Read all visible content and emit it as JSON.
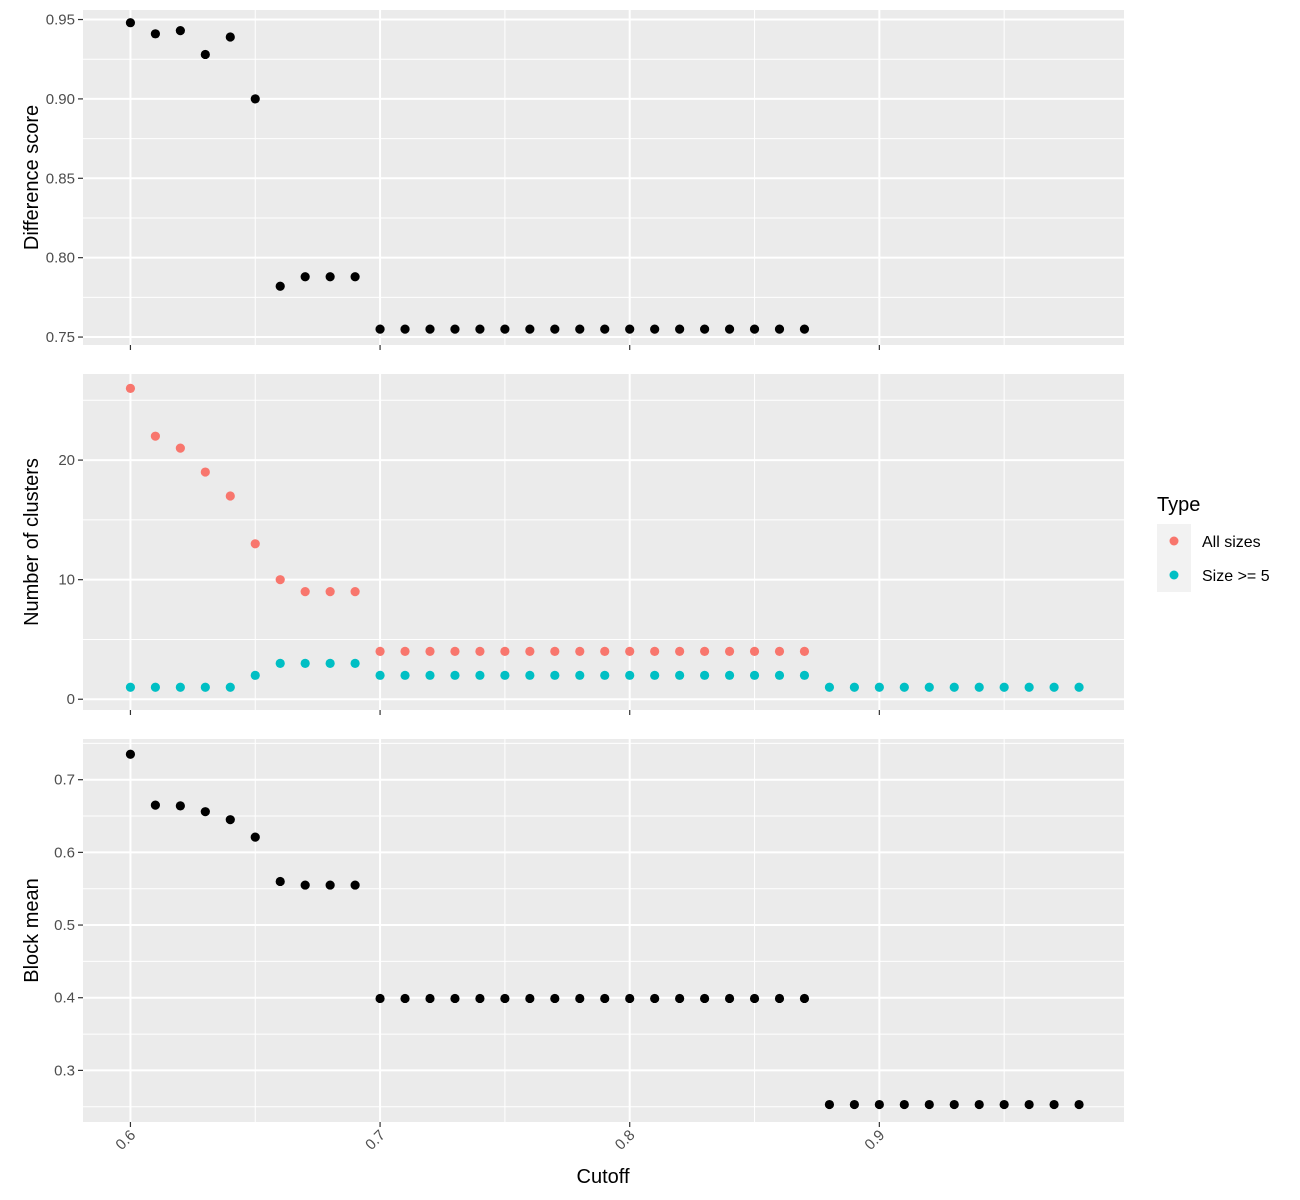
{
  "chart_data": {
    "type": "scatter",
    "x_label": "Cutoff",
    "x_ticks": [
      "0.6",
      "0.7",
      "0.8",
      "0.9"
    ],
    "x_tick_values": [
      0.6,
      0.7,
      0.8,
      0.9
    ],
    "x_range": [
      0.581,
      0.998
    ],
    "x": [
      0.6,
      0.61,
      0.62,
      0.63,
      0.64,
      0.65,
      0.66,
      0.67,
      0.68,
      0.69,
      0.7,
      0.71,
      0.72,
      0.73,
      0.74,
      0.75,
      0.76,
      0.77,
      0.78,
      0.79,
      0.8,
      0.81,
      0.82,
      0.83,
      0.84,
      0.85,
      0.86,
      0.87,
      0.88,
      0.89,
      0.9,
      0.91,
      0.92,
      0.93,
      0.94,
      0.95,
      0.96,
      0.97,
      0.98
    ],
    "grid": true,
    "panel_background": "#ebebeb",
    "grid_color": "#ffffff",
    "legend": {
      "title": "Type",
      "position": "right",
      "entries": [
        {
          "label": "All sizes",
          "color": "#f8766d"
        },
        {
          "label": "Size >= 5",
          "color": "#00bfc4"
        }
      ]
    },
    "panels": [
      {
        "ylabel": "Difference score",
        "y_ticks": [
          "0.75",
          "0.80",
          "0.85",
          "0.90",
          "0.95"
        ],
        "y_tick_values": [
          0.75,
          0.8,
          0.85,
          0.9,
          0.95
        ],
        "y_range": [
          0.745,
          0.956
        ],
        "series": [
          {
            "color": "#000000",
            "values": [
              0.948,
              0.941,
              0.943,
              0.928,
              0.939,
              0.9,
              0.782,
              0.788,
              0.788,
              0.788,
              0.755,
              0.755,
              0.755,
              0.755,
              0.755,
              0.755,
              0.755,
              0.755,
              0.755,
              0.755,
              0.755,
              0.755,
              0.755,
              0.755,
              0.755,
              0.755,
              0.755,
              0.755,
              null,
              null,
              null,
              null,
              null,
              null,
              null,
              null,
              null,
              null,
              null
            ]
          }
        ]
      },
      {
        "ylabel": "Number of clusters",
        "y_ticks": [
          "0",
          "10",
          "20"
        ],
        "y_tick_values": [
          0,
          10,
          20
        ],
        "y_range": [
          -0.9,
          27.2
        ],
        "series": [
          {
            "name": "All sizes",
            "color": "#f8766d",
            "values": [
              26,
              22,
              21,
              19,
              17,
              13,
              10,
              9,
              9,
              9,
              4,
              4,
              4,
              4,
              4,
              4,
              4,
              4,
              4,
              4,
              4,
              4,
              4,
              4,
              4,
              4,
              4,
              4,
              null,
              null,
              null,
              null,
              null,
              null,
              null,
              null,
              null,
              null,
              null
            ]
          },
          {
            "name": "Size >= 5",
            "color": "#00bfc4",
            "values": [
              1,
              1,
              1,
              1,
              1,
              2,
              3,
              3,
              3,
              3,
              2,
              2,
              2,
              2,
              2,
              2,
              2,
              2,
              2,
              2,
              2,
              2,
              2,
              2,
              2,
              2,
              2,
              2,
              1,
              1,
              1,
              1,
              1,
              1,
              1,
              1,
              1,
              1,
              1
            ]
          }
        ]
      },
      {
        "ylabel": "Block mean",
        "y_ticks": [
          "0.3",
          "0.4",
          "0.5",
          "0.6",
          "0.7"
        ],
        "y_tick_values": [
          0.3,
          0.4,
          0.5,
          0.6,
          0.7
        ],
        "y_range": [
          0.229,
          0.756
        ],
        "series": [
          {
            "color": "#000000",
            "values": [
              0.735,
              0.665,
              0.664,
              0.656,
              0.645,
              0.621,
              0.56,
              0.555,
              0.555,
              0.555,
              0.399,
              0.399,
              0.399,
              0.399,
              0.399,
              0.399,
              0.399,
              0.399,
              0.399,
              0.399,
              0.399,
              0.399,
              0.399,
              0.399,
              0.399,
              0.399,
              0.399,
              0.399,
              0.253,
              0.253,
              0.253,
              0.253,
              0.253,
              0.253,
              0.253,
              0.253,
              0.253,
              0.253,
              0.253
            ]
          }
        ]
      }
    ]
  }
}
